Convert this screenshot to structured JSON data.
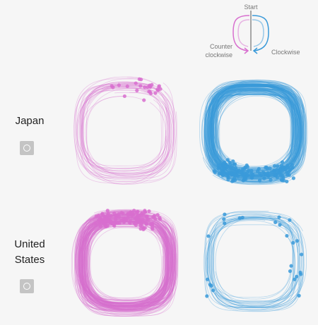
{
  "legend": {
    "start": "Start",
    "counter_clockwise": [
      "Counter",
      "clockwise"
    ],
    "clockwise": "Clockwise"
  },
  "rows": [
    {
      "label": "Japan"
    },
    {
      "label": "United States"
    }
  ]
}
